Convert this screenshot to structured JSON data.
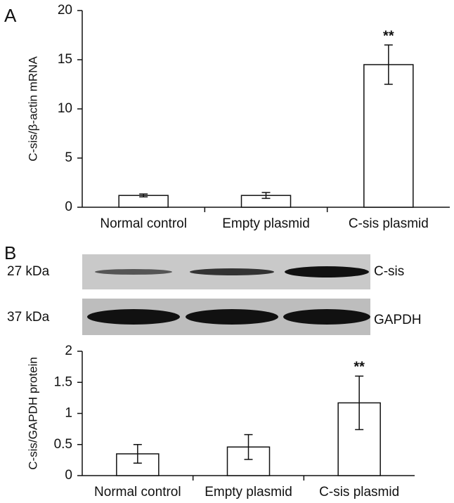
{
  "panel_labels": [
    "A",
    "B"
  ],
  "blot": {
    "rows": [
      {
        "size": "27 kDa",
        "protein": "C-sis"
      },
      {
        "size": "37 kDa",
        "protein": "GAPDH"
      }
    ]
  },
  "chart_data": [
    {
      "type": "bar",
      "y_label": "C-sis/β-actin mRNA",
      "categories": [
        "Normal control",
        "Empty plasmid",
        "C-sis plasmid"
      ],
      "values": [
        1.2,
        1.2,
        14.5
      ],
      "errors": [
        0.15,
        0.3,
        2.0
      ],
      "value_annotations": [
        null,
        null,
        "**"
      ],
      "color": "#ffffff",
      "ylim": [
        0,
        20
      ],
      "yticks": [
        0,
        5,
        10,
        15,
        20
      ]
    },
    {
      "type": "bar",
      "y_label": "C-sis/GAPDH protein",
      "categories": [
        "Normal control",
        "Empty plasmid",
        "C-sis plasmid"
      ],
      "values": [
        0.35,
        0.46,
        1.17
      ],
      "errors": [
        0.15,
        0.2,
        0.43
      ],
      "value_annotations": [
        null,
        null,
        "**"
      ],
      "color": "#ffffff",
      "ylim": [
        0,
        2
      ],
      "yticks": [
        0,
        0.5,
        1,
        1.5,
        2
      ]
    }
  ]
}
